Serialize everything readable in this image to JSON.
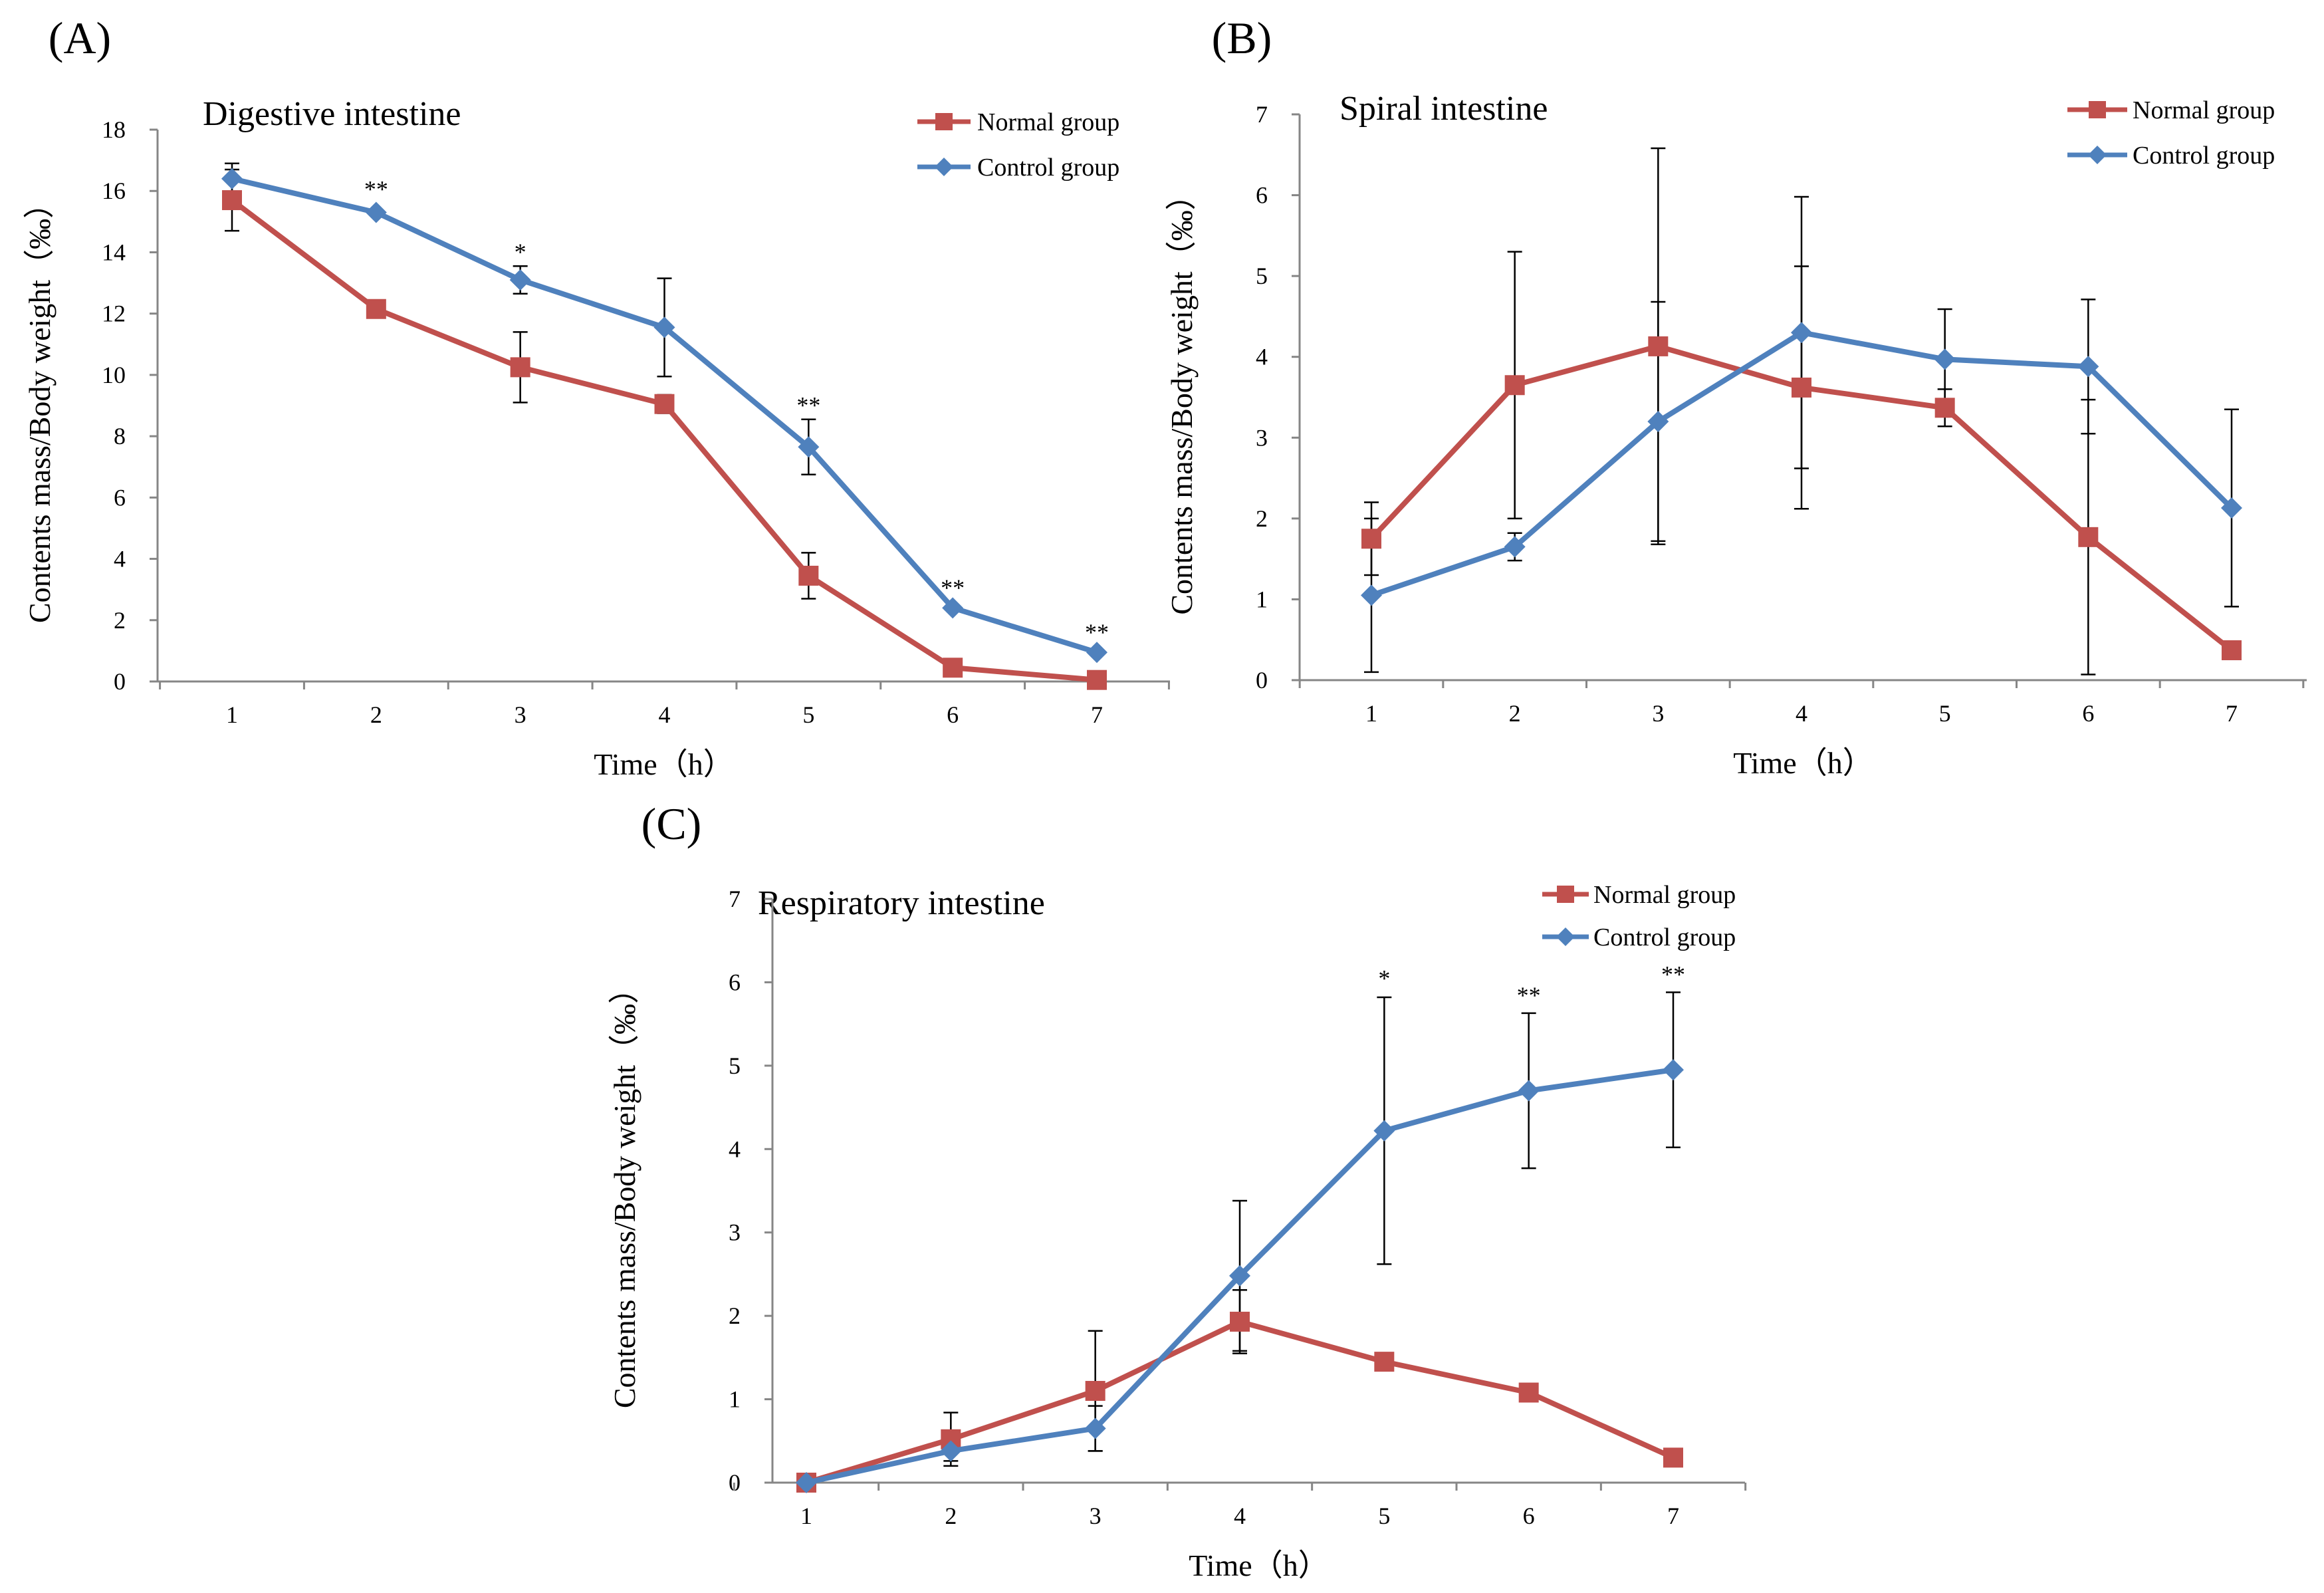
{
  "chart_data": [
    {
      "panel_label": "(A)",
      "type": "line",
      "title": "Digestive intestine",
      "xlabel": "Time（h）",
      "ylabel": "Contents mass/Body weight（‰）",
      "categories": [
        "1",
        "2",
        "3",
        "4",
        "5",
        "6",
        "7"
      ],
      "ylim": [
        0,
        18
      ],
      "yticks": [
        0,
        2,
        4,
        6,
        8,
        10,
        12,
        14,
        16,
        18
      ],
      "legend": "top-right",
      "series": [
        {
          "name": "Normal group",
          "color": "#c0504d",
          "marker": "square",
          "values": [
            15.7,
            12.15,
            10.25,
            9.05,
            3.45,
            0.45,
            0.05
          ],
          "errors": [
            1.0,
            0,
            1.15,
            0.3,
            0.75,
            0,
            0
          ]
        },
        {
          "name": "Control group",
          "color": "#4f81bd",
          "marker": "diamond",
          "values": [
            16.4,
            15.3,
            13.1,
            11.55,
            7.65,
            2.4,
            0.95
          ],
          "errors": [
            0.5,
            0,
            0.45,
            1.6,
            0.9,
            0,
            0
          ]
        }
      ],
      "significance": [
        {
          "x": "2",
          "text": "**",
          "y": 15.8
        },
        {
          "x": "3",
          "text": "*",
          "y": 13.75
        },
        {
          "x": "5",
          "text": "**",
          "y": 8.75
        },
        {
          "x": "6",
          "text": "**",
          "y": 2.8
        },
        {
          "x": "7",
          "text": "**",
          "y": 1.35
        }
      ]
    },
    {
      "panel_label": "(B)",
      "type": "line",
      "title": "Spiral intestine",
      "xlabel": "Time（h）",
      "ylabel": "Contents mass/Body weight（‰）",
      "categories": [
        "1",
        "2",
        "3",
        "4",
        "5",
        "6",
        "7"
      ],
      "ylim": [
        0,
        7
      ],
      "yticks": [
        0,
        1,
        2,
        3,
        4,
        5,
        6,
        7
      ],
      "legend": "top-right",
      "series": [
        {
          "name": "Normal group",
          "color": "#c0504d",
          "marker": "square",
          "values": [
            1.75,
            3.65,
            4.13,
            3.62,
            3.37,
            1.77,
            0.37
          ],
          "errors": [
            0.45,
            1.65,
            2.45,
            1.5,
            0.23,
            1.7,
            0
          ]
        },
        {
          "name": "Control group",
          "color": "#4f81bd",
          "marker": "diamond",
          "values": [
            1.05,
            1.65,
            3.2,
            4.3,
            3.97,
            3.88,
            2.13
          ],
          "errors": [
            0.95,
            0.17,
            1.48,
            1.68,
            0.62,
            0.83,
            1.22
          ]
        }
      ],
      "significance": []
    },
    {
      "panel_label": "(C)",
      "type": "line",
      "title": "Respiratory intestine",
      "xlabel": "Time（h）",
      "ylabel": "Contents mass/Body weight（‰）",
      "categories": [
        "1",
        "2",
        "3",
        "4",
        "5",
        "6",
        "7"
      ],
      "ylim": [
        0,
        7
      ],
      "yticks": [
        0,
        1,
        2,
        3,
        4,
        5,
        6,
        7
      ],
      "legend": "top-right",
      "series": [
        {
          "name": "Normal group",
          "color": "#c0504d",
          "marker": "square",
          "values": [
            0.0,
            0.52,
            1.1,
            1.93,
            1.45,
            1.08,
            0.3
          ],
          "errors": [
            0,
            0.32,
            0.72,
            0.38,
            0,
            0,
            0
          ]
        },
        {
          "name": "Control group",
          "color": "#4f81bd",
          "marker": "diamond",
          "values": [
            0.0,
            0.38,
            0.65,
            2.48,
            4.22,
            4.7,
            4.95
          ],
          "errors": [
            0,
            0.12,
            0.27,
            0.9,
            1.6,
            0.93,
            0.93
          ]
        }
      ],
      "significance": [
        {
          "x": "5",
          "text": "*",
          "y": 5.95
        },
        {
          "x": "6",
          "text": "**",
          "y": 5.75
        },
        {
          "x": "7",
          "text": "**",
          "y": 6.0
        }
      ]
    }
  ]
}
